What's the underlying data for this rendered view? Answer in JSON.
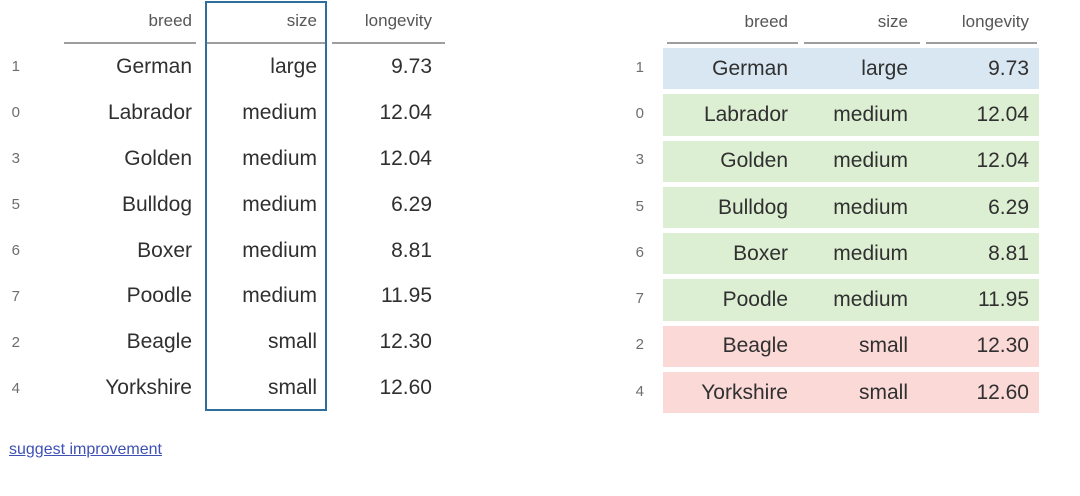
{
  "chart_data": [
    {
      "type": "table",
      "columns": [
        "breed",
        "size",
        "longevity"
      ],
      "rows": [
        {
          "index": "1",
          "breed": "German",
          "size": "large",
          "longevity": "9.73"
        },
        {
          "index": "0",
          "breed": "Labrador",
          "size": "medium",
          "longevity": "12.04"
        },
        {
          "index": "3",
          "breed": "Golden",
          "size": "medium",
          "longevity": "12.04"
        },
        {
          "index": "5",
          "breed": "Bulldog",
          "size": "medium",
          "longevity": "6.29"
        },
        {
          "index": "6",
          "breed": "Boxer",
          "size": "medium",
          "longevity": "8.81"
        },
        {
          "index": "7",
          "breed": "Poodle",
          "size": "medium",
          "longevity": "11.95"
        },
        {
          "index": "2",
          "breed": "Beagle",
          "size": "small",
          "longevity": "12.30"
        },
        {
          "index": "4",
          "breed": "Yorkshire",
          "size": "small",
          "longevity": "12.60"
        }
      ],
      "highlight": {
        "style": "column-outline",
        "column": "size",
        "border_color": "#2e6f9e"
      }
    },
    {
      "type": "table",
      "columns": [
        "breed",
        "size",
        "longevity"
      ],
      "rows": [
        {
          "index": "1",
          "breed": "German",
          "size": "large",
          "longevity": "9.73"
        },
        {
          "index": "0",
          "breed": "Labrador",
          "size": "medium",
          "longevity": "12.04"
        },
        {
          "index": "3",
          "breed": "Golden",
          "size": "medium",
          "longevity": "12.04"
        },
        {
          "index": "5",
          "breed": "Bulldog",
          "size": "medium",
          "longevity": "6.29"
        },
        {
          "index": "6",
          "breed": "Boxer",
          "size": "medium",
          "longevity": "8.81"
        },
        {
          "index": "7",
          "breed": "Poodle",
          "size": "medium",
          "longevity": "11.95"
        },
        {
          "index": "2",
          "breed": "Beagle",
          "size": "small",
          "longevity": "12.30"
        },
        {
          "index": "4",
          "breed": "Yorkshire",
          "size": "small",
          "longevity": "12.60"
        }
      ],
      "highlight": {
        "style": "row-background-by-size",
        "colors": {
          "large": "#d9e7f2",
          "medium": "#ddefd3",
          "small": "#fbd9d7"
        }
      }
    }
  ],
  "footer": {
    "link_label": "suggest improvement",
    "link_color": "#3e50b4"
  },
  "style_colors": {
    "header_text": "#565656",
    "cell_text": "#303030",
    "index_text": "#6e6e6e",
    "header_rule": "#9e9e9e",
    "background": "#ffffff"
  }
}
